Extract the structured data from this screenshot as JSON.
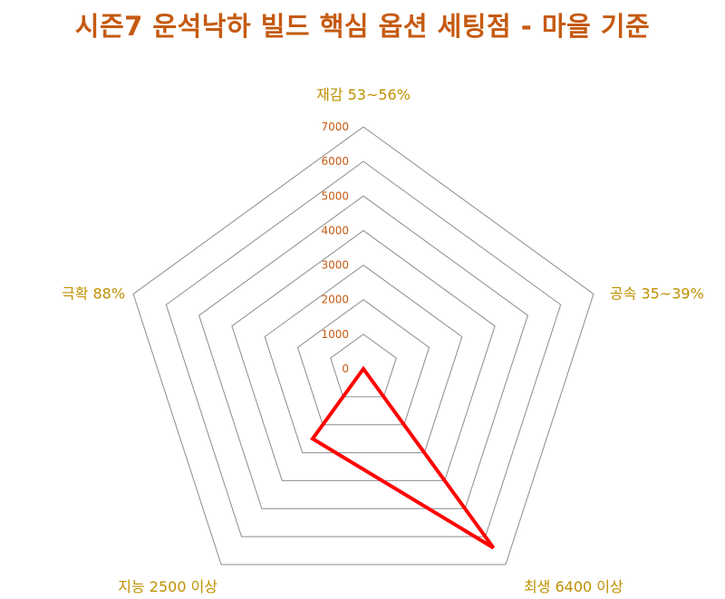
{
  "chart_data": {
    "type": "radar",
    "title": "시즌7 운석낙하 빌드 핵심 옵션 세팅점 - 마을 기준",
    "categories": [
      "재감 53~56%",
      "공속 35~39%",
      "최생 6400 이상",
      "지능 2500 이상",
      "극확 88%"
    ],
    "series": [
      {
        "values": [
          0,
          0,
          6400,
          2500,
          0
        ]
      }
    ],
    "rlim": [
      0,
      7000
    ],
    "ticks": [
      0,
      1000,
      2000,
      3000,
      4000,
      5000,
      6000,
      7000
    ],
    "colors": {
      "title": "#C55A11",
      "axis_label": "#BF9000",
      "tick_label": "#C55A11",
      "grid": "#8c8c8c",
      "series": "#FF0000"
    }
  }
}
